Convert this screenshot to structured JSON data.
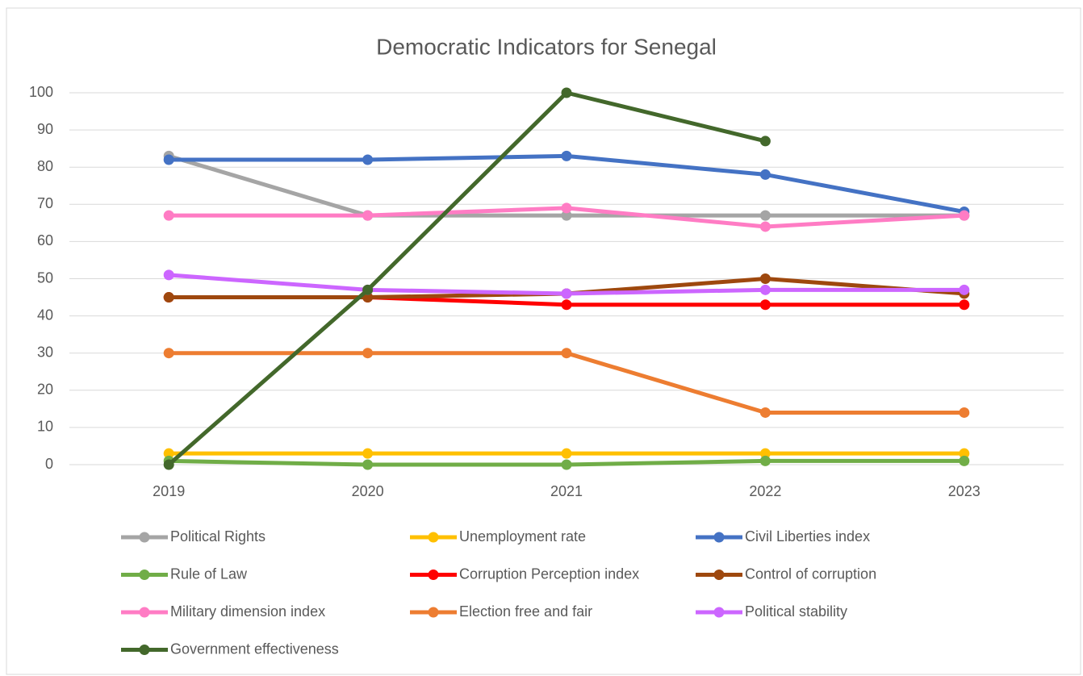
{
  "chart_data": {
    "type": "line",
    "title": "Democratic Indicators for Senegal",
    "categories": [
      "2019",
      "2020",
      "2021",
      "2022",
      "2023"
    ],
    "ylim": [
      0,
      100
    ],
    "yticks": [
      0,
      10,
      20,
      30,
      40,
      50,
      60,
      70,
      80,
      90,
      100
    ],
    "grid": true,
    "legend": "bottom",
    "series": [
      {
        "name": "Political Rights",
        "color": "#a5a5a5",
        "values": [
          83,
          67,
          67,
          67,
          67
        ]
      },
      {
        "name": "Unemployment rate",
        "color": "#ffc000",
        "values": [
          3,
          3,
          3,
          3,
          3
        ]
      },
      {
        "name": "Civil Liberties index",
        "color": "#4472c4",
        "values": [
          82,
          82,
          83,
          78,
          68
        ]
      },
      {
        "name": "Rule of Law",
        "color": "#70ad47",
        "values": [
          1,
          0,
          0,
          1,
          1
        ]
      },
      {
        "name": "Corruption Perception index",
        "color": "#ff0000",
        "values": [
          45,
          45,
          43,
          43,
          43
        ]
      },
      {
        "name": "Control of corruption",
        "color": "#9e480e",
        "values": [
          45,
          45,
          46,
          50,
          46
        ]
      },
      {
        "name": "Military dimension index",
        "color": "#ff7cc4",
        "values": [
          67,
          67,
          69,
          64,
          67
        ]
      },
      {
        "name": "Election free and fair",
        "color": "#ed7d31",
        "values": [
          30,
          30,
          30,
          14,
          14
        ]
      },
      {
        "name": "Political stability",
        "color": "#cc66ff",
        "values": [
          51,
          47,
          46,
          47,
          47
        ]
      },
      {
        "name": "Government effectiveness",
        "color": "#43682b",
        "values": [
          0,
          47,
          100,
          87,
          null
        ]
      }
    ]
  }
}
